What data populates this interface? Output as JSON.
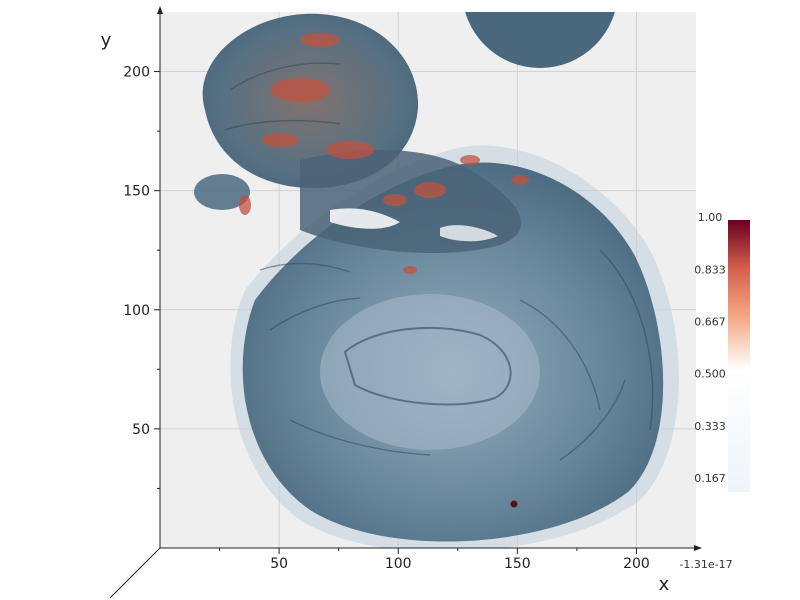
{
  "chart_data": {
    "type": "heatmap",
    "title": "",
    "xlabel": "x",
    "ylabel": "y",
    "xlim": [
      0,
      225
    ],
    "ylim": [
      0,
      225
    ],
    "x_ticks": [
      50,
      100,
      150,
      200
    ],
    "y_ticks": [
      50,
      100,
      150,
      200
    ],
    "x_tick_labels": [
      "50",
      "100",
      "150",
      "200"
    ],
    "y_tick_labels": [
      "50",
      "100",
      "150",
      "200"
    ],
    "z_axis_label": "-1.31e-17",
    "grid": true,
    "colorbar": {
      "range": [
        0.0,
        1.0
      ],
      "ticks": [
        1.0,
        0.833,
        0.667,
        0.5,
        0.333,
        0.167
      ],
      "tick_labels": [
        "1.00",
        "0.833",
        "0.667",
        "0.500",
        "0.333",
        "0.167"
      ],
      "colors": [
        "#f7fbff",
        "#ffffff",
        "#f4a582",
        "#d6604d",
        "#67001f"
      ]
    },
    "rendering": "3D volume rendering of a brain scan, viewed along the z axis",
    "colors": {
      "panel": "#efefef",
      "grid": "#d2d2d2",
      "volume_blue": "#3d5d75",
      "volume_light": "#8aa6b8",
      "volume_red": "#c2523f"
    }
  }
}
